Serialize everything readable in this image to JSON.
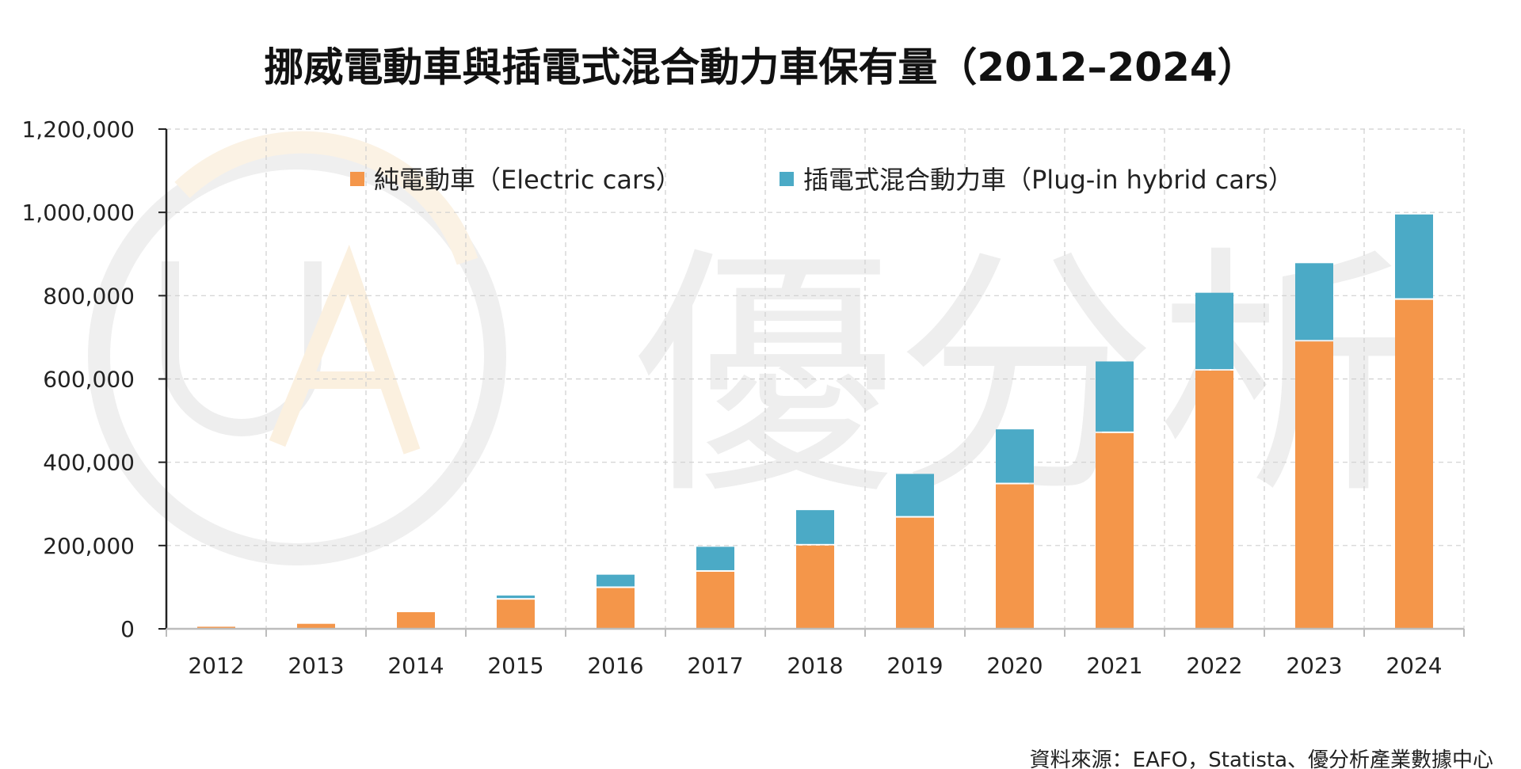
{
  "chart_data": {
    "type": "bar",
    "stacked": true,
    "title": "挪威電動車與插電式混合動力車保有量（2012–2024）",
    "xlabel": "",
    "ylabel": "",
    "categories": [
      "2012",
      "2013",
      "2014",
      "2015",
      "2016",
      "2017",
      "2018",
      "2019",
      "2020",
      "2021",
      "2022",
      "2023",
      "2024"
    ],
    "series": [
      {
        "name": "純電動車（Electric cars）",
        "color": "#F4964A",
        "values": [
          5000,
          12000,
          40000,
          70000,
          98000,
          137000,
          200000,
          267000,
          347000,
          470000,
          620000,
          690000,
          790000
        ]
      },
      {
        "name": "插電式混合動力車（Plug-in hybrid cars）",
        "color": "#4BAAC6",
        "values": [
          0,
          0,
          0,
          10000,
          32000,
          60000,
          85000,
          105000,
          132000,
          172000,
          187000,
          188000,
          205000
        ]
      }
    ],
    "ylim": [
      0,
      1200000
    ],
    "yticks": [
      0,
      200000,
      400000,
      600000,
      800000,
      1000000,
      1200000
    ],
    "ytick_labels": [
      "0",
      "200,000",
      "400,000",
      "600,000",
      "800,000",
      "1,000,000",
      "1,200,000"
    ],
    "grid": true,
    "legend_position": "top"
  },
  "source_text": "資料來源：EAFO，Statista、優分析產業數據中心",
  "watermark": {
    "text": "優分析",
    "logo_text": "UA"
  }
}
